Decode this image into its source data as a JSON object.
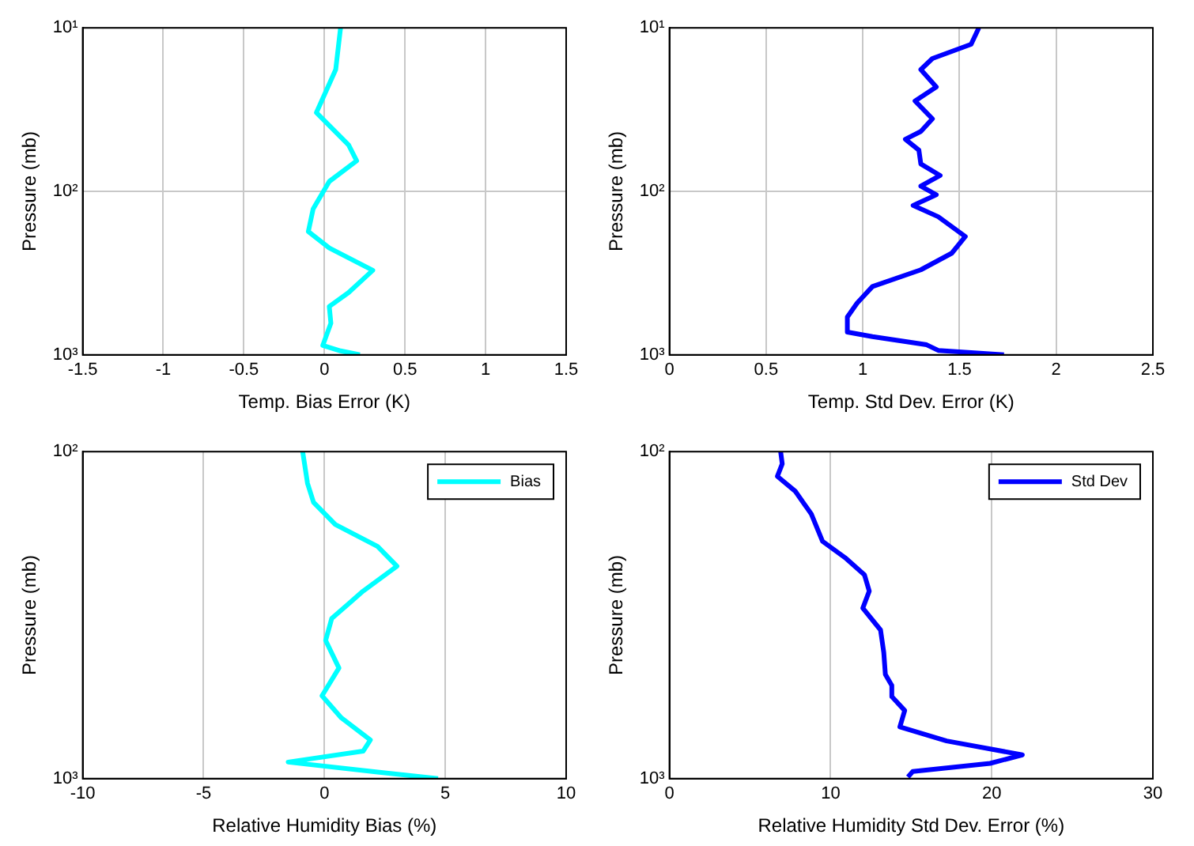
{
  "chart_data": [
    {
      "type": "line",
      "xlabel": "Temp. Bias Error (K)",
      "ylabel": "Pressure (mb)",
      "xlim": [
        -1.5,
        1.5
      ],
      "xticks": [
        -1.5,
        -1,
        -0.5,
        0,
        0.5,
        1,
        1.5
      ],
      "ylim": [
        1000,
        10
      ],
      "yticks": [
        {
          "value": 10,
          "label": "10¹"
        },
        {
          "value": 100,
          "label": "10²"
        },
        {
          "value": 1000,
          "label": "10³"
        }
      ],
      "log": "y",
      "grid": true,
      "series": [
        {
          "color": "#00ffff",
          "x": [
            0.1,
            0.07,
            -0.05,
            0,
            0.15,
            0.2,
            0.03,
            -0.07,
            -0.1,
            0.03,
            0.3,
            0.15,
            0.03,
            0.04,
            -0.01,
            0.1,
            0.22
          ],
          "values": [
            10,
            18,
            33,
            37,
            52,
            65,
            87,
            128,
            176,
            222,
            304,
            416,
            506,
            640,
            875,
            946,
            1000
          ]
        }
      ]
    },
    {
      "type": "line",
      "xlabel": "Temp. Std Dev. Error (K)",
      "ylabel": "Pressure (mb)",
      "xlim": [
        0,
        2.5
      ],
      "xticks": [
        0,
        0.5,
        1,
        1.5,
        2,
        2.5
      ],
      "ylim": [
        1000,
        10
      ],
      "yticks": [
        {
          "value": 10,
          "label": "10¹"
        },
        {
          "value": 100,
          "label": "10²"
        },
        {
          "value": 1000,
          "label": "10³"
        }
      ],
      "log": "y",
      "grid": true,
      "series": [
        {
          "color": "#0000ff",
          "x": [
            1.6,
            1.56,
            1.36,
            1.3,
            1.38,
            1.27,
            1.36,
            1.3,
            1.22,
            1.29,
            1.3,
            1.4,
            1.3,
            1.38,
            1.26,
            1.39,
            1.53,
            1.46,
            1.3,
            1.05,
            0.97,
            0.92,
            0.92,
            1.05,
            1.33,
            1.39,
            1.73
          ],
          "values": [
            10,
            12.6,
            15.4,
            18,
            23,
            28,
            36,
            43,
            48,
            56,
            68,
            80,
            93,
            105,
            122,
            143,
            189,
            239,
            302,
            382,
            483,
            587,
            726,
            773,
            868,
            939,
            1000
          ]
        }
      ]
    },
    {
      "type": "line",
      "xlabel": "Relative Humidity Bias (%)",
      "ylabel": "Pressure (mb)",
      "xlim": [
        -10,
        10
      ],
      "xticks": [
        -10,
        -5,
        0,
        5,
        10
      ],
      "ylim": [
        1000,
        100
      ],
      "yticks": [
        {
          "value": 100,
          "label": "10²"
        },
        {
          "value": 1000,
          "label": "10³"
        }
      ],
      "log": "y",
      "grid": true,
      "legend": "top right",
      "series": [
        {
          "name": "Bias",
          "color": "#00ffff",
          "x": [
            -0.9,
            -0.7,
            -0.45,
            0.45,
            2.2,
            3,
            1.6,
            0.3,
            0.05,
            0.6,
            -0.1,
            0.7,
            1.9,
            1.6,
            -1.5,
            2.2,
            4.7
          ],
          "values": [
            100,
            125,
            143,
            167,
            195,
            224,
            267,
            324,
            378,
            459,
            558,
            652,
            762,
            824,
            890,
            955,
            1000
          ]
        }
      ]
    },
    {
      "type": "line",
      "xlabel": "Relative Humidity Std Dev. Error (%)",
      "ylabel": "Pressure (mb)",
      "xlim": [
        0,
        30
      ],
      "xticks": [
        0,
        10,
        20,
        30
      ],
      "ylim": [
        1000,
        100
      ],
      "yticks": [
        {
          "value": 100,
          "label": "10²"
        },
        {
          "value": 1000,
          "label": "10³"
        }
      ],
      "log": "y",
      "grid": true,
      "legend": "top right",
      "series": [
        {
          "name": "Std Dev",
          "color": "#0000ff",
          "x": [
            6.9,
            7,
            6.7,
            7.8,
            8.8,
            9.5,
            10.9,
            12.1,
            12.4,
            12,
            13.1,
            13.3,
            13.4,
            13.8,
            13.8,
            14.6,
            14.3,
            17.2,
            21.9,
            19.9,
            15.1,
            14.8
          ],
          "values": [
            100,
            109,
            119,
            132,
            155,
            188,
            211,
            238,
            267,
            301,
            351,
            411,
            480,
            519,
            561,
            619,
            695,
            767,
            846,
            898,
            951,
            988
          ]
        }
      ]
    }
  ]
}
